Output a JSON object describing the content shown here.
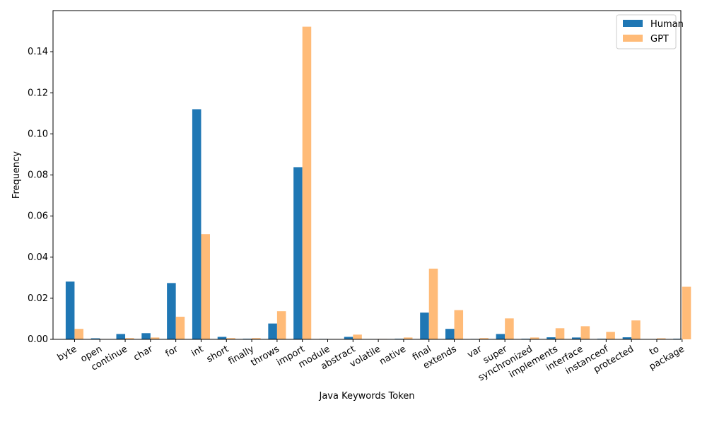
{
  "chart_data": {
    "type": "bar",
    "title": "",
    "xlabel": "Java Keywords Token",
    "ylabel": "Frequency",
    "ylim": [
      0,
      0.16
    ],
    "yticks": [
      0.0,
      0.02,
      0.04,
      0.06,
      0.08,
      0.1,
      0.12,
      0.14
    ],
    "ytick_labels": [
      "0.00",
      "0.02",
      "0.04",
      "0.06",
      "0.08",
      "0.10",
      "0.12",
      "0.14"
    ],
    "grid": false,
    "legend_position": "top-right",
    "categories": [
      "byte",
      "open",
      "continue",
      "char",
      "for",
      "int",
      "short",
      "finally",
      "throws",
      "import",
      "module",
      "abstract",
      "volatile",
      "native",
      "final",
      "extends",
      "var",
      "super",
      "synchronized",
      "implements",
      "interface",
      "instanceof",
      "protected",
      "to",
      "package"
    ],
    "series": [
      {
        "name": "Human",
        "color": "#1f77b4",
        "values": [
          0.0281,
          0.0005,
          0.0026,
          0.003,
          0.0274,
          0.112,
          0.0012,
          0.0003,
          0.0077,
          0.0838,
          0.0002,
          0.0012,
          0.0,
          0.0003,
          0.013,
          0.0051,
          0.0002,
          0.0026,
          0.0003,
          0.001,
          0.0009,
          0.0003,
          0.001,
          0.0,
          0.0003
        ]
      },
      {
        "name": "GPT",
        "color": "#ffbb78",
        "values": [
          0.0051,
          0.0,
          0.0006,
          0.0009,
          0.011,
          0.0512,
          0.0006,
          0.0006,
          0.0137,
          0.1522,
          0.0001,
          0.0023,
          0.0002,
          0.0009,
          0.0344,
          0.0142,
          0.0006,
          0.0102,
          0.0009,
          0.0054,
          0.0064,
          0.0036,
          0.0092,
          0.0005,
          0.0256
        ]
      }
    ]
  }
}
